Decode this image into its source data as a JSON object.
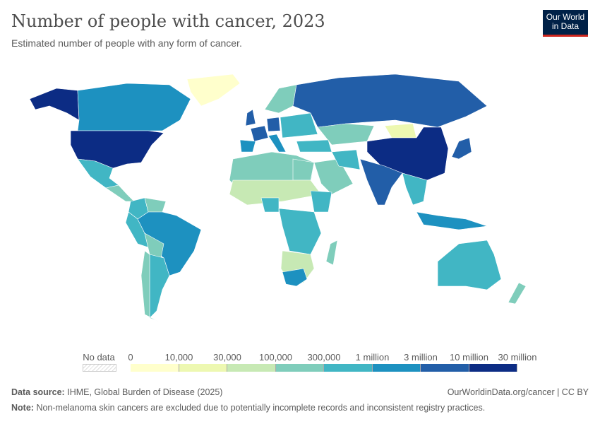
{
  "header": {
    "title": "Number of people with cancer, 2023",
    "subtitle": "Estimated number of people with any form of cancer.",
    "logo": "Our World in Data"
  },
  "legend": {
    "no_data_label": "No data",
    "bins": [
      {
        "from": "0",
        "to": "10,000",
        "color": "#ffffcc"
      },
      {
        "from": "10,000",
        "to": "30,000",
        "color": "#edf8b1"
      },
      {
        "from": "30,000",
        "to": "100,000",
        "color": "#c7e9b4"
      },
      {
        "from": "100,000",
        "to": "300,000",
        "color": "#7fcdbb"
      },
      {
        "from": "300,000",
        "to": "1 million",
        "color": "#41b6c4"
      },
      {
        "from": "1 million",
        "to": "3 million",
        "color": "#1d91c0"
      },
      {
        "from": "3 million",
        "to": "10 million",
        "color": "#225ea8"
      },
      {
        "from": "10 million",
        "to": "30 million",
        "color": "#0c2c84"
      }
    ],
    "labels": [
      "0",
      "10,000",
      "30,000",
      "100,000",
      "300,000",
      "1 million",
      "3 million",
      "10 million",
      "30 million"
    ]
  },
  "footer": {
    "source_label": "Data source:",
    "source": "IHME, Global Burden of Disease (2025)",
    "url": "OurWorldinData.org/cancer | CC BY",
    "note_label": "Note:",
    "note": "Non-melanoma skin cancers are excluded due to potentially incomplete records and inconsistent registry practices."
  }
}
